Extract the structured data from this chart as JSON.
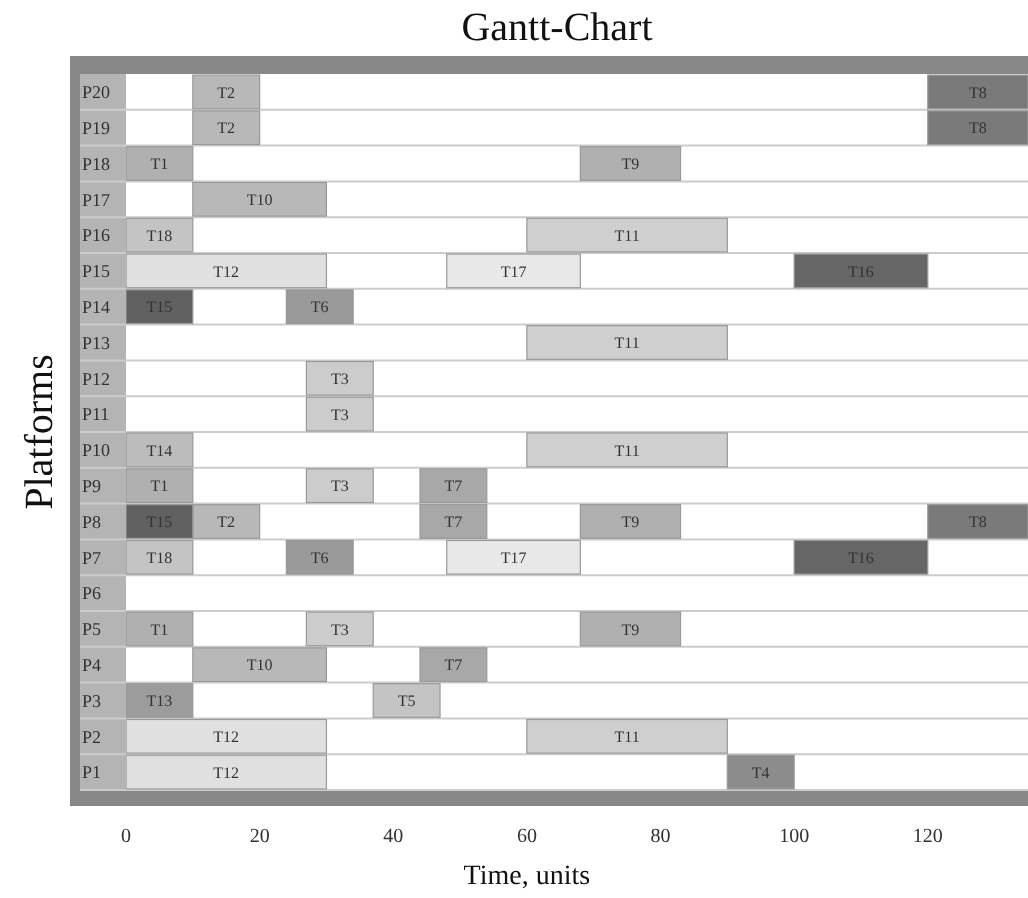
{
  "chart_data": {
    "type": "bar",
    "orientation": "horizontal",
    "title": "Gantt-Chart",
    "xlabel": "Time, units",
    "ylabel": "Platforms",
    "categories": [
      "P20",
      "P19",
      "P18",
      "P17",
      "P16",
      "P15",
      "P14",
      "P13",
      "P12",
      "P11",
      "P10",
      "P9",
      "P8",
      "P7",
      "P6",
      "P5",
      "P4",
      "P3",
      "P2",
      "P1"
    ],
    "xlim": [
      0,
      135
    ],
    "xticks": [
      0,
      20,
      40,
      60,
      80,
      100,
      120
    ],
    "series": [
      {
        "name": "T1",
        "color": "#b0b0b0",
        "values": [
          null,
          null,
          10,
          null,
          null,
          null,
          null,
          null,
          null,
          null,
          null,
          10,
          null,
          null,
          null,
          10,
          null,
          null,
          null,
          null
        ],
        "base": [
          null,
          null,
          0,
          null,
          null,
          null,
          null,
          null,
          null,
          null,
          null,
          0,
          null,
          null,
          null,
          0,
          null,
          null,
          null,
          null
        ]
      },
      {
        "name": "T2",
        "color": "#b8b8b8",
        "values": [
          10,
          10,
          null,
          null,
          null,
          null,
          null,
          null,
          null,
          null,
          null,
          null,
          10,
          null,
          null,
          null,
          null,
          null,
          null,
          null
        ],
        "base": [
          10,
          10,
          null,
          null,
          null,
          null,
          null,
          null,
          null,
          null,
          null,
          null,
          10,
          null,
          null,
          null,
          null,
          null,
          null,
          null
        ]
      },
      {
        "name": "T3",
        "color": "#cccccc",
        "values": [
          null,
          null,
          null,
          null,
          null,
          null,
          null,
          null,
          10,
          10,
          null,
          10,
          null,
          null,
          null,
          10,
          null,
          null,
          null,
          null
        ],
        "base": [
          null,
          null,
          null,
          null,
          null,
          null,
          null,
          null,
          27,
          27,
          null,
          27,
          null,
          null,
          null,
          27,
          null,
          null,
          null,
          null
        ]
      },
      {
        "name": "T4",
        "color": "#8c8c8c",
        "values": [
          null,
          null,
          null,
          null,
          null,
          null,
          null,
          null,
          null,
          null,
          null,
          null,
          null,
          null,
          null,
          null,
          null,
          null,
          null,
          10
        ],
        "base": [
          null,
          null,
          null,
          null,
          null,
          null,
          null,
          null,
          null,
          null,
          null,
          null,
          null,
          null,
          null,
          null,
          null,
          null,
          null,
          90
        ]
      },
      {
        "name": "T5",
        "color": "#c4c4c4",
        "values": [
          null,
          null,
          null,
          null,
          null,
          null,
          null,
          null,
          null,
          null,
          null,
          null,
          null,
          null,
          null,
          null,
          null,
          10,
          null,
          null
        ],
        "base": [
          null,
          null,
          null,
          null,
          null,
          null,
          null,
          null,
          null,
          null,
          null,
          null,
          null,
          null,
          null,
          null,
          null,
          37,
          null,
          null
        ]
      },
      {
        "name": "T6",
        "color": "#9a9a9a",
        "values": [
          null,
          null,
          null,
          null,
          null,
          null,
          10,
          null,
          null,
          null,
          null,
          null,
          null,
          10,
          null,
          null,
          null,
          null,
          null,
          null
        ],
        "base": [
          null,
          null,
          null,
          null,
          null,
          null,
          24,
          null,
          null,
          null,
          null,
          null,
          null,
          24,
          null,
          null,
          null,
          null,
          null,
          null
        ]
      },
      {
        "name": "T7",
        "color": "#a8a8a8",
        "values": [
          null,
          null,
          null,
          null,
          null,
          null,
          null,
          null,
          null,
          null,
          null,
          10,
          10,
          null,
          null,
          null,
          10,
          null,
          null,
          null
        ],
        "base": [
          null,
          null,
          null,
          null,
          null,
          null,
          null,
          null,
          null,
          null,
          null,
          44,
          44,
          null,
          null,
          null,
          44,
          null,
          null,
          null
        ]
      },
      {
        "name": "T8",
        "color": "#7a7a7a",
        "values": [
          15,
          15,
          null,
          null,
          null,
          null,
          null,
          null,
          null,
          null,
          null,
          null,
          15,
          null,
          null,
          null,
          null,
          null,
          null,
          null
        ],
        "base": [
          120,
          120,
          null,
          null,
          null,
          null,
          null,
          null,
          null,
          null,
          null,
          null,
          120,
          null,
          null,
          null,
          null,
          null,
          null,
          null
        ]
      },
      {
        "name": "T9",
        "color": "#b0b0b0",
        "values": [
          null,
          null,
          15,
          null,
          null,
          null,
          null,
          null,
          null,
          null,
          null,
          null,
          15,
          null,
          null,
          15,
          null,
          null,
          null,
          null
        ],
        "base": [
          null,
          null,
          68,
          null,
          null,
          null,
          null,
          null,
          null,
          null,
          null,
          null,
          68,
          null,
          null,
          68,
          null,
          null,
          null,
          null
        ]
      },
      {
        "name": "T10",
        "color": "#b8b8b8",
        "values": [
          null,
          null,
          null,
          20,
          null,
          null,
          null,
          null,
          null,
          null,
          null,
          null,
          null,
          null,
          null,
          null,
          20,
          null,
          null,
          null
        ],
        "base": [
          null,
          null,
          null,
          10,
          null,
          null,
          null,
          null,
          null,
          null,
          null,
          null,
          null,
          null,
          null,
          null,
          10,
          null,
          null,
          null
        ]
      },
      {
        "name": "T11",
        "color": "#cfcfcf",
        "values": [
          null,
          null,
          null,
          null,
          30,
          null,
          null,
          30,
          null,
          null,
          30,
          null,
          null,
          null,
          null,
          null,
          null,
          null,
          30,
          null
        ],
        "base": [
          null,
          null,
          null,
          null,
          60,
          null,
          null,
          60,
          null,
          null,
          60,
          null,
          null,
          null,
          null,
          null,
          null,
          null,
          60,
          null
        ]
      },
      {
        "name": "T12",
        "color": "#e0e0e0",
        "values": [
          null,
          null,
          null,
          null,
          null,
          30,
          null,
          null,
          null,
          null,
          null,
          null,
          null,
          null,
          null,
          null,
          null,
          null,
          30,
          30
        ],
        "base": [
          null,
          null,
          null,
          null,
          null,
          0,
          null,
          null,
          null,
          null,
          null,
          null,
          null,
          null,
          null,
          null,
          null,
          null,
          0,
          0
        ]
      },
      {
        "name": "T13",
        "color": "#9c9c9c",
        "values": [
          null,
          null,
          null,
          null,
          null,
          null,
          null,
          null,
          null,
          null,
          null,
          null,
          null,
          null,
          null,
          null,
          null,
          10,
          null,
          null
        ],
        "base": [
          null,
          null,
          null,
          null,
          null,
          null,
          null,
          null,
          null,
          null,
          null,
          null,
          null,
          null,
          null,
          null,
          null,
          0,
          null,
          null
        ]
      },
      {
        "name": "T14",
        "color": "#bcbcbc",
        "values": [
          null,
          null,
          null,
          null,
          null,
          null,
          null,
          null,
          null,
          null,
          10,
          null,
          null,
          null,
          null,
          null,
          null,
          null,
          null,
          null
        ],
        "base": [
          null,
          null,
          null,
          null,
          null,
          null,
          null,
          null,
          null,
          null,
          0,
          null,
          null,
          null,
          null,
          null,
          null,
          null,
          null,
          null
        ]
      },
      {
        "name": "T15",
        "color": "#606060",
        "values": [
          null,
          null,
          null,
          null,
          null,
          null,
          10,
          null,
          null,
          null,
          null,
          null,
          10,
          null,
          null,
          null,
          null,
          null,
          null,
          null
        ],
        "base": [
          null,
          null,
          null,
          null,
          null,
          null,
          0,
          null,
          null,
          null,
          null,
          null,
          0,
          null,
          null,
          null,
          null,
          null,
          null,
          null
        ]
      },
      {
        "name": "T16",
        "color": "#666666",
        "values": [
          null,
          null,
          null,
          null,
          null,
          20,
          null,
          null,
          null,
          null,
          null,
          null,
          null,
          20,
          null,
          null,
          null,
          null,
          null,
          null
        ],
        "base": [
          null,
          null,
          null,
          null,
          null,
          100,
          null,
          null,
          null,
          null,
          null,
          null,
          null,
          100,
          null,
          null,
          null,
          null,
          null,
          null
        ]
      },
      {
        "name": "T17",
        "color": "#e8e8e8",
        "values": [
          null,
          null,
          null,
          null,
          null,
          20,
          null,
          null,
          null,
          null,
          null,
          null,
          null,
          20,
          null,
          null,
          null,
          null,
          null,
          null
        ],
        "base": [
          null,
          null,
          null,
          null,
          null,
          48,
          null,
          null,
          null,
          null,
          null,
          null,
          null,
          48,
          null,
          null,
          null,
          null,
          null,
          null
        ]
      },
      {
        "name": "T18",
        "color": "#c4c4c4",
        "values": [
          null,
          null,
          null,
          null,
          10,
          null,
          null,
          null,
          null,
          null,
          null,
          null,
          null,
          10,
          null,
          null,
          null,
          null,
          null,
          null
        ],
        "base": [
          null,
          null,
          null,
          null,
          0,
          null,
          null,
          null,
          null,
          null,
          null,
          null,
          null,
          0,
          null,
          null,
          null,
          null,
          null,
          null
        ]
      }
    ]
  }
}
